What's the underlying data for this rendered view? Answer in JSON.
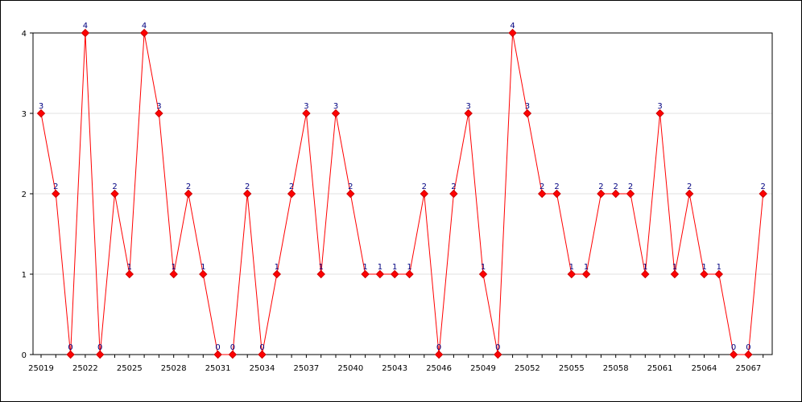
{
  "chart_data": {
    "type": "line",
    "title": "",
    "xlabel": "",
    "ylabel": "",
    "x": [
      25019,
      25020,
      25021,
      25022,
      25023,
      25024,
      25025,
      25026,
      25027,
      25028,
      25029,
      25030,
      25031,
      25032,
      25033,
      25034,
      25035,
      25036,
      25037,
      25038,
      25039,
      25040,
      25041,
      25042,
      25043,
      25044,
      25045,
      25046,
      25047,
      25048,
      25049,
      25050,
      25051,
      25052,
      25053,
      25054,
      25055,
      25056,
      25057,
      25058,
      25059,
      25060,
      25061,
      25062,
      25063,
      25064,
      25065,
      25066,
      25067,
      25068
    ],
    "x_tick_labels": [
      "25019",
      "25022",
      "25025",
      "25028",
      "25031",
      "25034",
      "25037",
      "25040",
      "25043",
      "25046",
      "25049",
      "25052",
      "25055",
      "25058",
      "25061",
      "25064",
      "25067"
    ],
    "series": [
      {
        "values": [
          3,
          2,
          0,
          4,
          0,
          2,
          1,
          4,
          3,
          1,
          2,
          1,
          0,
          0,
          2,
          0,
          1,
          2,
          3,
          1,
          3,
          2,
          1,
          1,
          1,
          1,
          2,
          0,
          2,
          3,
          1,
          0,
          4,
          3,
          2,
          2,
          1,
          1,
          2,
          2,
          2,
          1,
          3,
          1,
          2,
          1,
          1,
          0,
          0,
          2
        ],
        "color": "#ff0000",
        "marker_color": "#cc0000",
        "label_color": "#000080"
      }
    ],
    "y_ticks": [
      0,
      1,
      2,
      3,
      4
    ],
    "ylim": [
      0,
      4
    ],
    "grid": "horizontal",
    "data_labels": true
  }
}
